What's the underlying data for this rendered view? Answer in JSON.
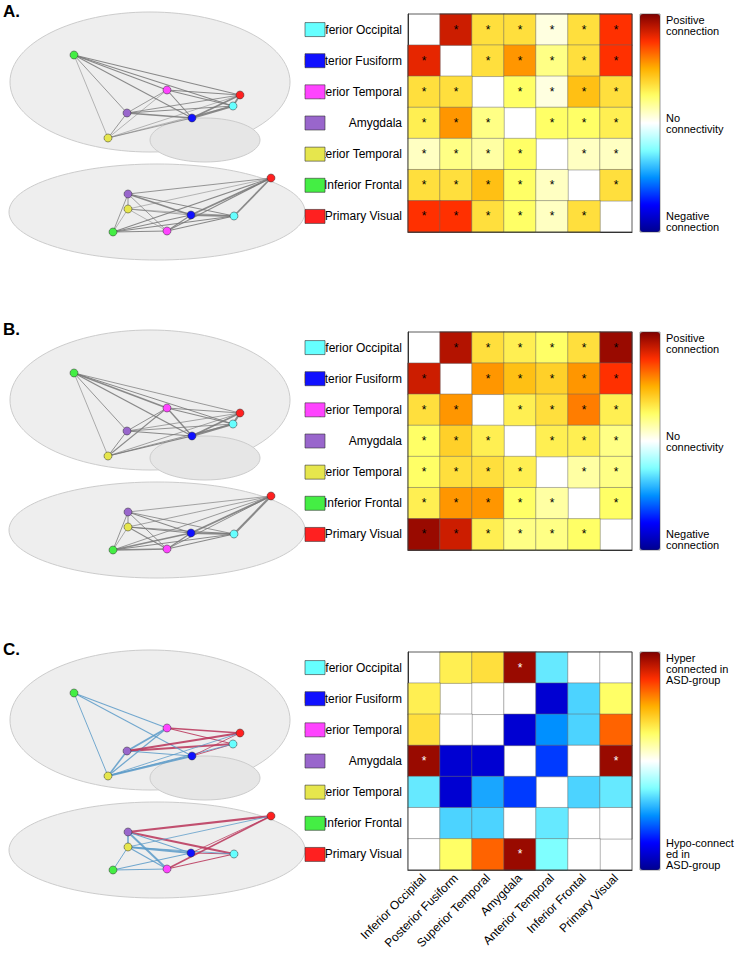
{
  "chart_data": [
    {
      "type": "heatmap",
      "title": "A.",
      "categories": [
        "Inferior Occipital",
        "Posterior Fusiform",
        "Superior Temporal",
        "Amygdala",
        "Anterior Temporal",
        "Inferior Frontal",
        "Primary Visual"
      ],
      "colors": [
        "#66ffff",
        "#1010ff",
        "#ff44ff",
        "#9966cc",
        "#e6e64d",
        "#44ee44",
        "#ff2020"
      ],
      "values": [
        [
          null,
          0.85,
          0.35,
          0.35,
          0.05,
          0.35,
          0.75
        ],
        [
          0.8,
          null,
          0.35,
          0.55,
          0.2,
          0.35,
          0.75
        ],
        [
          0.35,
          0.35,
          null,
          0.25,
          0.05,
          0.45,
          0.35
        ],
        [
          0.3,
          0.55,
          0.2,
          null,
          0.25,
          0.25,
          0.3
        ],
        [
          0.1,
          0.2,
          0.15,
          0.25,
          null,
          0.1,
          0.1
        ],
        [
          0.35,
          0.35,
          0.45,
          0.25,
          0.1,
          null,
          0.35
        ],
        [
          0.75,
          0.75,
          0.35,
          0.25,
          0.1,
          0.35,
          null
        ]
      ],
      "significant": [
        [
          false,
          true,
          true,
          true,
          true,
          true,
          true
        ],
        [
          true,
          false,
          true,
          true,
          true,
          true,
          true
        ],
        [
          true,
          true,
          false,
          true,
          true,
          true,
          true
        ],
        [
          true,
          true,
          true,
          false,
          true,
          true,
          true
        ],
        [
          true,
          true,
          true,
          true,
          false,
          true,
          true
        ],
        [
          true,
          true,
          true,
          true,
          true,
          false,
          true
        ],
        [
          true,
          true,
          true,
          true,
          true,
          true,
          false
        ]
      ],
      "significance_mark": "*",
      "colorbar_range": [
        -1,
        1
      ],
      "colorbar_ticks": [
        {
          "value": 1,
          "label": "Positive connection"
        },
        {
          "value": 0,
          "label": "No connectivity"
        },
        {
          "value": -1,
          "label": "Negative connection"
        }
      ],
      "tick_labels": "y"
    },
    {
      "type": "heatmap",
      "title": "B.",
      "categories": [
        "Inferior Occipital",
        "Posterior Fusiform",
        "Superior Temporal",
        "Amygdala",
        "Anterior Temporal",
        "Inferior Frontal",
        "Primary Visual"
      ],
      "colors": [
        "#66ffff",
        "#1010ff",
        "#ff44ff",
        "#9966cc",
        "#e6e64d",
        "#44ee44",
        "#ff2020"
      ],
      "values": [
        [
          null,
          0.9,
          0.35,
          0.3,
          0.25,
          0.35,
          0.95
        ],
        [
          0.85,
          null,
          0.55,
          0.45,
          0.4,
          0.55,
          0.75
        ],
        [
          0.35,
          0.55,
          null,
          0.3,
          0.35,
          0.6,
          0.3
        ],
        [
          0.25,
          0.4,
          0.3,
          null,
          0.3,
          0.3,
          0.2
        ],
        [
          0.25,
          0.35,
          0.35,
          0.3,
          null,
          0.15,
          0.2
        ],
        [
          0.3,
          0.55,
          0.55,
          0.25,
          0.15,
          null,
          0.25
        ],
        [
          0.95,
          0.85,
          0.3,
          0.2,
          0.2,
          0.25,
          null
        ]
      ],
      "significant": [
        [
          false,
          true,
          true,
          true,
          true,
          true,
          true
        ],
        [
          true,
          false,
          true,
          true,
          true,
          true,
          true
        ],
        [
          true,
          true,
          false,
          true,
          true,
          true,
          true
        ],
        [
          true,
          true,
          true,
          false,
          true,
          true,
          true
        ],
        [
          true,
          true,
          true,
          true,
          false,
          true,
          true
        ],
        [
          true,
          true,
          true,
          true,
          true,
          false,
          true
        ],
        [
          true,
          true,
          true,
          true,
          true,
          true,
          false
        ]
      ],
      "significance_mark": "*",
      "colorbar_range": [
        -1,
        1
      ],
      "colorbar_ticks": [
        {
          "value": 1,
          "label": "Positive connection"
        },
        {
          "value": 0,
          "label": "No connectivity"
        },
        {
          "value": -1,
          "label": "Negative connection"
        }
      ],
      "tick_labels": "y"
    },
    {
      "type": "heatmap",
      "title": "C.",
      "categories": [
        "Inferior Occipital",
        "Posterior Fusiform",
        "Superior Temporal",
        "Amygdala",
        "Anterior Temporal",
        "Inferior Frontal",
        "Primary Visual"
      ],
      "colors": [
        "#66ffff",
        "#1010ff",
        "#ff44ff",
        "#9966cc",
        "#e6e64d",
        "#44ee44",
        "#ff2020"
      ],
      "values": [
        [
          null,
          0.3,
          0.35,
          0.95,
          -0.3,
          0,
          0
        ],
        [
          0.3,
          null,
          0,
          0,
          -0.85,
          -0.35,
          0.25
        ],
        [
          0.35,
          0,
          null,
          -0.85,
          -0.5,
          -0.35,
          0.65
        ],
        [
          0.95,
          -0.85,
          -0.85,
          null,
          -0.65,
          0,
          0.95
        ],
        [
          -0.3,
          -0.85,
          -0.45,
          -0.65,
          null,
          -0.35,
          -0.3
        ],
        [
          0,
          -0.35,
          -0.35,
          0,
          -0.3,
          null,
          0
        ],
        [
          0,
          0.25,
          0.65,
          0.95,
          -0.25,
          0,
          null
        ]
      ],
      "significant": [
        [
          false,
          false,
          false,
          true,
          false,
          false,
          false
        ],
        [
          false,
          false,
          false,
          false,
          false,
          false,
          false
        ],
        [
          false,
          false,
          false,
          false,
          false,
          false,
          false
        ],
        [
          true,
          false,
          false,
          false,
          false,
          false,
          true
        ],
        [
          false,
          false,
          false,
          false,
          false,
          false,
          false
        ],
        [
          false,
          false,
          false,
          false,
          false,
          false,
          false
        ],
        [
          false,
          false,
          false,
          true,
          false,
          false,
          false
        ]
      ],
      "significance_mark": "*",
      "colorbar_range": [
        -1,
        1
      ],
      "colorbar_ticks": [
        {
          "value": 1,
          "label": "Hyper connected in ASD-group"
        },
        {
          "value": -1,
          "label": "Hypo-connected in ASD-group"
        }
      ]
    }
  ]
}
